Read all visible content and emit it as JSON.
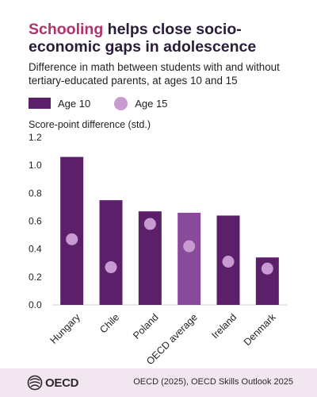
{
  "header": {
    "title_accent": "Schooling",
    "title_rest": " helps close socio-economic gaps in adolescence",
    "subtitle": "Difference in math between students with and without tertiary-educated parents, at ages 10 and 15"
  },
  "footer": {
    "logo_text": "OECD",
    "source": "OECD (2025), OECD Skills Outlook 2025"
  },
  "colors": {
    "bar": "#5b2069",
    "bar_highlight": "#8a4a9c",
    "dot": "#c79ad1",
    "accent": "#b0336b"
  },
  "chart_data": {
    "type": "bar",
    "title": "",
    "ylabel": "Score-point difference (std.)",
    "xlabel": "",
    "ylim": [
      0,
      1.2
    ],
    "yticks": [
      "0.0",
      "0.2",
      "0.4",
      "0.6",
      "0.8",
      "1.0",
      "1.2"
    ],
    "grid": false,
    "legend_position": "top-left",
    "categories": [
      "Hungary",
      "Chile",
      "Poland",
      "OECD average",
      "Ireland",
      "Denmark"
    ],
    "highlight_category": "OECD average",
    "series": [
      {
        "name": "Age 10",
        "kind": "bar",
        "values": [
          1.06,
          0.75,
          0.67,
          0.66,
          0.64,
          0.34
        ]
      },
      {
        "name": "Age 15",
        "kind": "dot",
        "values": [
          0.47,
          0.27,
          0.58,
          0.42,
          0.31,
          0.26
        ]
      }
    ]
  }
}
